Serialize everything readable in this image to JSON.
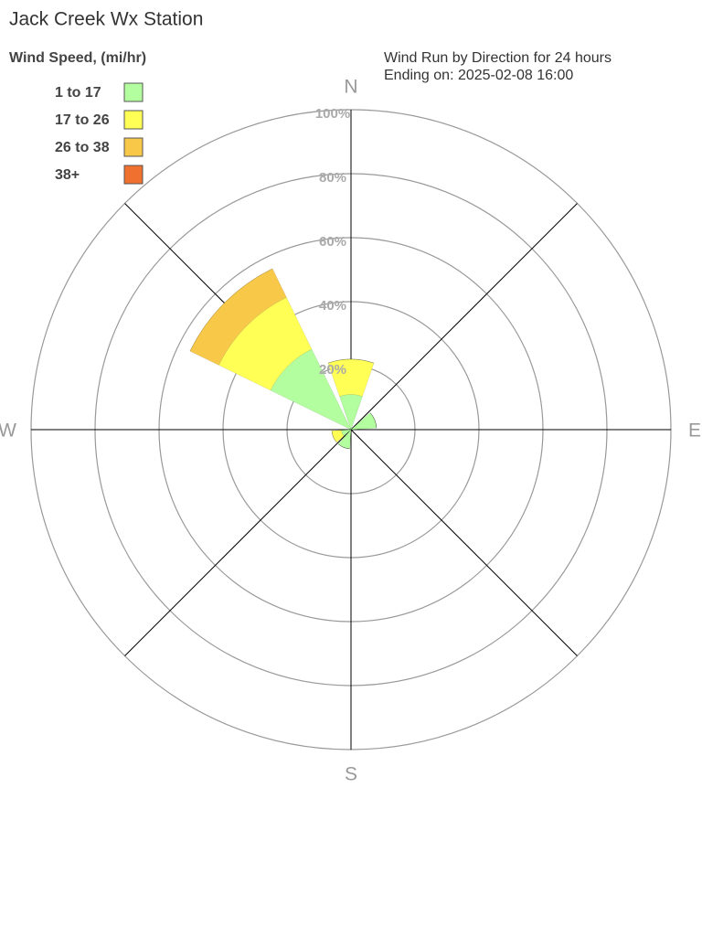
{
  "chart_data": {
    "type": "wind-rose",
    "title": "Jack Creek Wx Station",
    "subtitle": [
      "Wind Run by Direction for 24 hours",
      "Ending on: 2025-02-08 16:00"
    ],
    "legend_title": "Wind Speed, (mi/hr)",
    "categories": [
      "N",
      null,
      null,
      null,
      "E",
      null,
      null,
      null,
      "S",
      null,
      null,
      null,
      "W",
      null,
      null,
      null
    ],
    "series": [
      {
        "name": "1 to 17",
        "color": "#b3ff9f",
        "values": [
          11,
          0,
          0,
          8,
          0,
          0,
          0,
          0,
          0,
          6,
          0,
          3,
          0,
          0,
          28,
          0
        ]
      },
      {
        "name": "17 to 26",
        "color": "#ffff55",
        "values": [
          11,
          0,
          0,
          0,
          0,
          0,
          0,
          0,
          0,
          0,
          0,
          3,
          0,
          0,
          18,
          0
        ]
      },
      {
        "name": "26 to 38",
        "color": "#f8c848",
        "values": [
          0,
          0,
          0,
          0,
          0,
          0,
          0,
          0,
          0,
          0,
          0,
          0,
          0,
          0,
          10,
          0
        ]
      },
      {
        "name": "38+",
        "color": "#f07030",
        "values": [
          0,
          0,
          0,
          0,
          0,
          0,
          0,
          0,
          0,
          0,
          0,
          0,
          0,
          0,
          0,
          0
        ]
      }
    ],
    "rlim": [
      0,
      100
    ],
    "rticks": [
      {
        "value": 20,
        "label": "20%"
      },
      {
        "value": 40,
        "label": "40%"
      },
      {
        "value": 60,
        "label": "60%"
      },
      {
        "value": 80,
        "label": "80%"
      },
      {
        "value": 100,
        "label": "100%"
      }
    ]
  }
}
